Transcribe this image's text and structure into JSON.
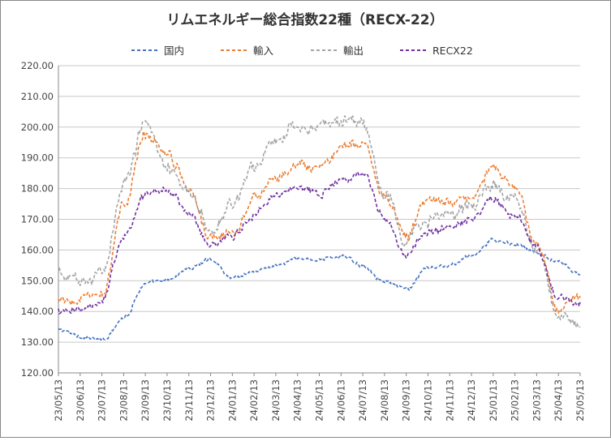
{
  "chart_data": {
    "type": "line",
    "title": "リムエネルギー総合指数22種（RECX-22）",
    "xlabel": "",
    "ylabel": "",
    "ylim": [
      120,
      220
    ],
    "yticks": [
      "120.00",
      "130.00",
      "140.00",
      "150.00",
      "160.00",
      "170.00",
      "180.00",
      "190.00",
      "200.00",
      "210.00",
      "220.00"
    ],
    "grid": true,
    "legend_position": "top",
    "categories": [
      "23/05/13",
      "23/06/13",
      "23/07/13",
      "23/08/13",
      "23/09/13",
      "23/10/13",
      "23/11/13",
      "23/12/13",
      "24/01/13",
      "24/02/13",
      "24/03/13",
      "24/04/13",
      "24/05/13",
      "24/06/13",
      "24/07/13",
      "24/08/13",
      "24/09/13",
      "24/10/13",
      "24/11/13",
      "24/12/13",
      "25/01/13",
      "25/02/13",
      "25/03/13",
      "25/04/13",
      "25/05/13"
    ],
    "series": [
      {
        "name": "国内",
        "color": "#4472C4",
        "values": [
          134,
          132,
          130.5,
          138,
          149,
          150,
          154,
          157,
          151,
          153,
          155,
          157,
          157,
          158,
          155,
          150,
          147,
          154,
          155,
          158,
          163,
          162,
          159,
          156,
          152
        ]
      },
      {
        "name": "輸入",
        "color": "#ED7D31",
        "values": [
          143,
          144,
          145,
          174,
          198,
          192,
          181,
          164,
          166,
          177,
          183,
          187,
          186,
          193,
          195,
          178,
          165,
          177,
          175,
          178,
          187,
          180,
          162,
          140,
          145
        ]
      },
      {
        "name": "輸出",
        "color": "#A5A5A5",
        "values": [
          152,
          150,
          152,
          182,
          202,
          188,
          178,
          166,
          175,
          188,
          196,
          201,
          200,
          202,
          201,
          178,
          163,
          170,
          171,
          175,
          181,
          176,
          161,
          138,
          135
        ]
      },
      {
        "name": "RECX22",
        "color": "#7030A0",
        "values": [
          140,
          140,
          144,
          164,
          178,
          180,
          172,
          161,
          164,
          172,
          178,
          181,
          179,
          183,
          185,
          170,
          158,
          166,
          167,
          170,
          177,
          172,
          160,
          145,
          143
        ]
      }
    ]
  }
}
